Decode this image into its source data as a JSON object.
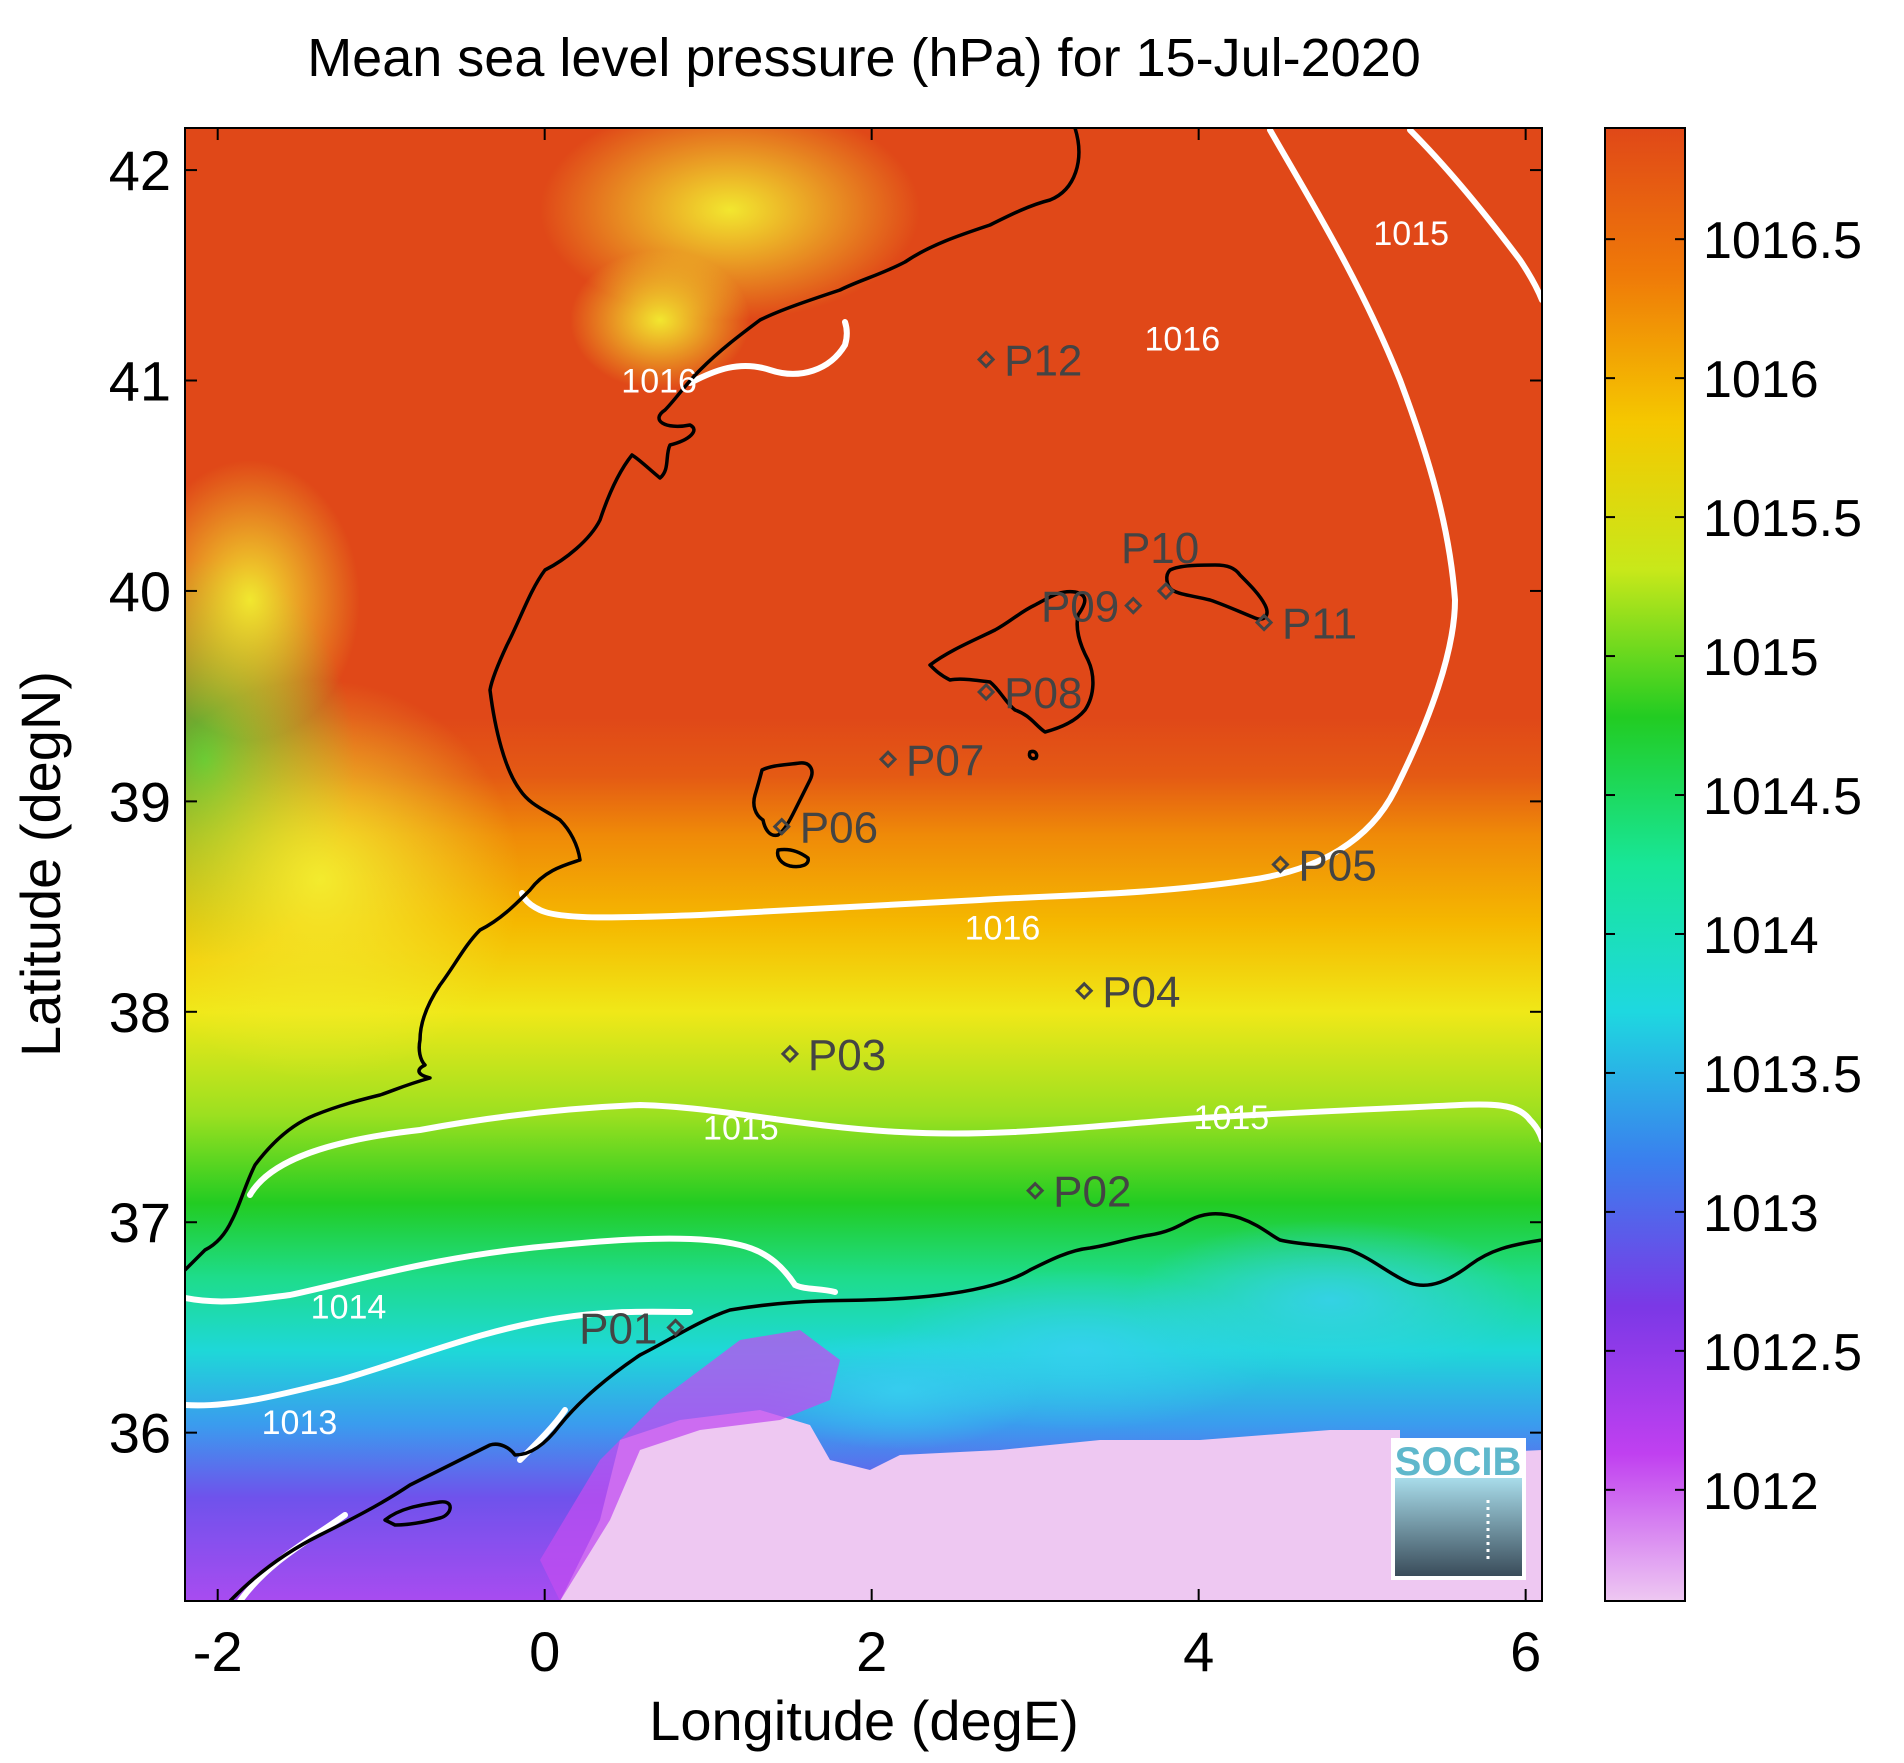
{
  "chart_data": {
    "type": "heatmap",
    "title": "Mean sea level pressure (hPa) for 15-Jul-2020",
    "xlabel": "Longitude (degE)",
    "ylabel": "Latitude (degN)",
    "xlim": [
      -2.2,
      6.1
    ],
    "ylim": [
      35.2,
      42.2
    ],
    "x_ticks": [
      -2,
      0,
      2,
      4,
      6
    ],
    "y_ticks": [
      36,
      37,
      38,
      39,
      40,
      41,
      42
    ],
    "colorbar": {
      "range": [
        1011.6,
        1016.9
      ],
      "ticks": [
        "1012",
        "1012.5",
        "1013",
        "1013.5",
        "1014",
        "1014.5",
        "1015",
        "1015.5",
        "1016",
        "1016.5"
      ],
      "colors": [
        "#eec8f2",
        "#c040f0",
        "#7b38e6",
        "#3a80ee",
        "#1ed8e0",
        "#18e698",
        "#22cc22",
        "#c8e81a",
        "#f5c800",
        "#ef7a08",
        "#e04818"
      ]
    },
    "contours": [
      {
        "level": "1016",
        "label": "1016",
        "label_positions": [
          [
            0.7,
            41.0
          ],
          [
            3.9,
            41.2
          ],
          [
            2.8,
            38.4
          ]
        ]
      },
      {
        "level": "1015",
        "label": "1015",
        "label_positions": [
          [
            1.2,
            37.45
          ],
          [
            4.2,
            37.5
          ],
          [
            5.3,
            41.7
          ]
        ]
      },
      {
        "level": "1014",
        "label": "1014",
        "label_positions": [
          [
            -1.2,
            36.6
          ]
        ]
      },
      {
        "level": "1013",
        "label": "1013",
        "label_positions": [
          [
            -1.5,
            36.05
          ]
        ]
      }
    ],
    "points": [
      {
        "name": "P01",
        "lon": 0.8,
        "lat": 36.5
      },
      {
        "name": "P02",
        "lon": 3.0,
        "lat": 37.15
      },
      {
        "name": "P03",
        "lon": 1.5,
        "lat": 37.8
      },
      {
        "name": "P04",
        "lon": 3.3,
        "lat": 38.1
      },
      {
        "name": "P05",
        "lon": 4.5,
        "lat": 38.7
      },
      {
        "name": "P06",
        "lon": 1.45,
        "lat": 38.88
      },
      {
        "name": "P07",
        "lon": 2.1,
        "lat": 39.2
      },
      {
        "name": "P08",
        "lon": 2.7,
        "lat": 39.52
      },
      {
        "name": "P09",
        "lon": 3.6,
        "lat": 39.93
      },
      {
        "name": "P10",
        "lon": 3.8,
        "lat": 40.0
      },
      {
        "name": "P11",
        "lon": 4.4,
        "lat": 39.85
      },
      {
        "name": "P12",
        "lon": 2.7,
        "lat": 41.1
      }
    ],
    "logo": "SOCIB"
  }
}
